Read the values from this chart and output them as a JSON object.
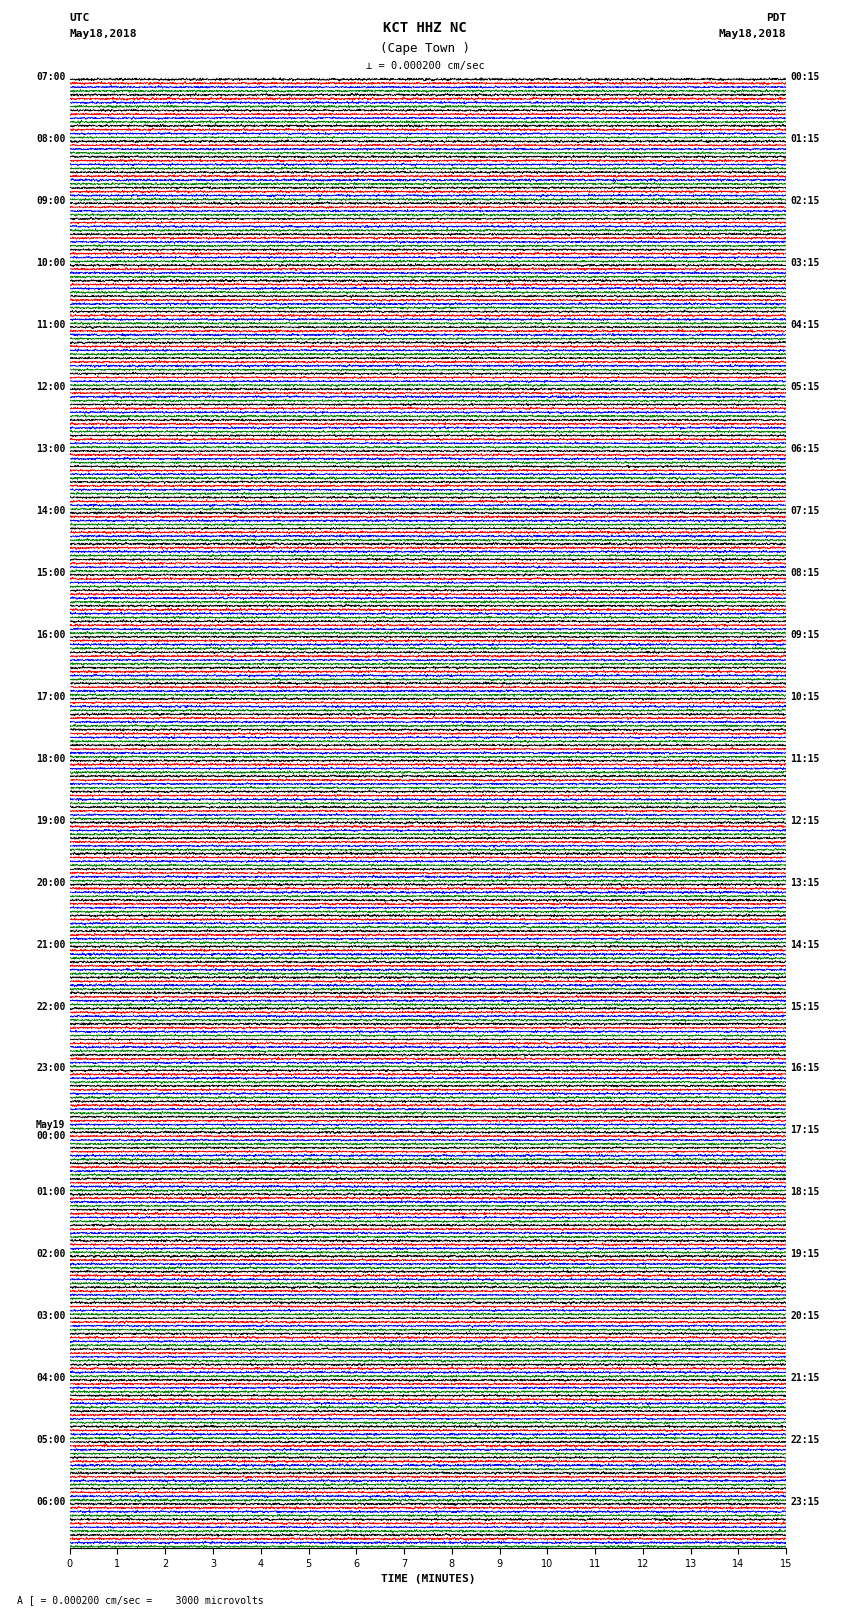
{
  "title_line1": "KCT HHZ NC",
  "title_line2": "(Cape Town )",
  "scale_text": "= 0.000200 cm/sec",
  "scale_label": "A [",
  "scale_right": "3000 microvolts",
  "left_header_line1": "UTC",
  "left_header_line2": "May18,2018",
  "right_header_line1": "PDT",
  "right_header_line2": "May18,2018",
  "xlabel": "TIME (MINUTES)",
  "xmin": 0,
  "xmax": 15,
  "xticks": [
    0,
    1,
    2,
    3,
    4,
    5,
    6,
    7,
    8,
    9,
    10,
    11,
    12,
    13,
    14,
    15
  ],
  "left_times": [
    "07:00",
    "",
    "",
    "",
    "08:00",
    "",
    "",
    "",
    "09:00",
    "",
    "",
    "",
    "10:00",
    "",
    "",
    "",
    "11:00",
    "",
    "",
    "",
    "12:00",
    "",
    "",
    "",
    "13:00",
    "",
    "",
    "",
    "14:00",
    "",
    "",
    "",
    "15:00",
    "",
    "",
    "",
    "16:00",
    "",
    "",
    "",
    "17:00",
    "",
    "",
    "",
    "18:00",
    "",
    "",
    "",
    "19:00",
    "",
    "",
    "",
    "20:00",
    "",
    "",
    "",
    "21:00",
    "",
    "",
    "",
    "22:00",
    "",
    "",
    "",
    "23:00",
    "",
    "",
    "",
    "May19\n00:00",
    "",
    "",
    "",
    "01:00",
    "",
    "",
    "",
    "02:00",
    "",
    "",
    "",
    "03:00",
    "",
    "",
    "",
    "04:00",
    "",
    "",
    "",
    "05:00",
    "",
    "",
    "",
    "06:00",
    "",
    ""
  ],
  "right_times": [
    "00:15",
    "",
    "",
    "",
    "01:15",
    "",
    "",
    "",
    "02:15",
    "",
    "",
    "",
    "03:15",
    "",
    "",
    "",
    "04:15",
    "",
    "",
    "",
    "05:15",
    "",
    "",
    "",
    "06:15",
    "",
    "",
    "",
    "07:15",
    "",
    "",
    "",
    "08:15",
    "",
    "",
    "",
    "09:15",
    "",
    "",
    "",
    "10:15",
    "",
    "",
    "",
    "11:15",
    "",
    "",
    "",
    "12:15",
    "",
    "",
    "",
    "13:15",
    "",
    "",
    "",
    "14:15",
    "",
    "",
    "",
    "15:15",
    "",
    "",
    "",
    "16:15",
    "",
    "",
    "",
    "17:15",
    "",
    "",
    "",
    "18:15",
    "",
    "",
    "",
    "19:15",
    "",
    "",
    "",
    "20:15",
    "",
    "",
    "",
    "21:15",
    "",
    "",
    "",
    "22:15",
    "",
    "",
    "",
    "23:15",
    "",
    ""
  ],
  "trace_colors": [
    "black",
    "red",
    "blue",
    "green"
  ],
  "num_rows": 95,
  "bg_color": "white",
  "trace_amplitude": 0.45,
  "font_size_title": 9,
  "font_size_labels": 7,
  "font_size_axis": 7
}
